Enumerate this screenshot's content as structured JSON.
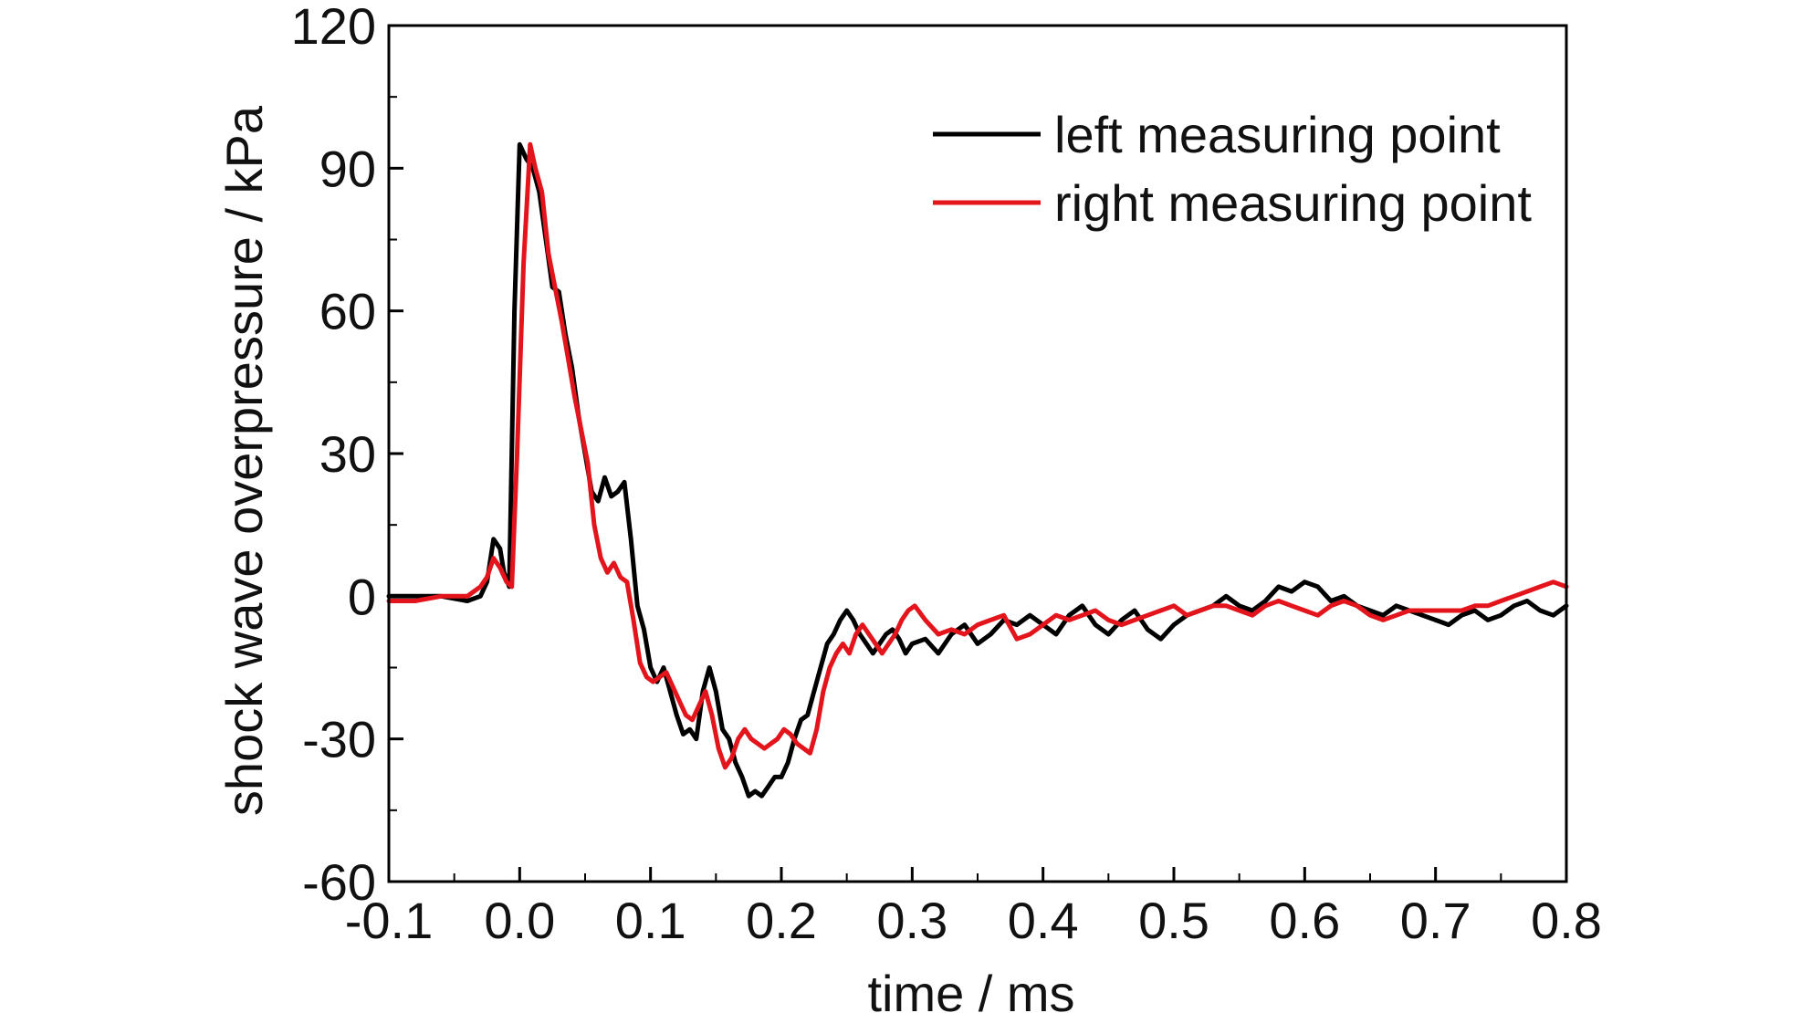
{
  "chart_data": {
    "type": "line",
    "xlabel": "time / ms",
    "ylabel": "shock wave overpressure / kPa",
    "xlim": [
      -0.1,
      0.8
    ],
    "ylim": [
      -60,
      120
    ],
    "xticks": [
      -0.1,
      0.0,
      0.1,
      0.2,
      0.3,
      0.4,
      0.5,
      0.6,
      0.7,
      0.8
    ],
    "xtick_labels": [
      "-0.1",
      "0.0",
      "0.1",
      "0.2",
      "0.3",
      "0.4",
      "0.5",
      "0.6",
      "0.7",
      "0.8"
    ],
    "yticks": [
      -60,
      -30,
      0,
      30,
      60,
      90,
      120
    ],
    "ytick_labels": [
      "-60",
      "-30",
      "0",
      "30",
      "60",
      "90",
      "120"
    ],
    "grid": false,
    "legend_position": "top-right",
    "series": [
      {
        "name": "left measuring point",
        "color": "#000000",
        "x": [
          -0.1,
          -0.08,
          -0.06,
          -0.04,
          -0.03,
          -0.025,
          -0.02,
          -0.015,
          -0.012,
          -0.008,
          -0.004,
          0.0,
          0.005,
          0.01,
          0.015,
          0.02,
          0.025,
          0.03,
          0.035,
          0.04,
          0.045,
          0.05,
          0.055,
          0.06,
          0.065,
          0.07,
          0.075,
          0.08,
          0.085,
          0.09,
          0.095,
          0.1,
          0.105,
          0.11,
          0.115,
          0.12,
          0.125,
          0.13,
          0.135,
          0.14,
          0.145,
          0.15,
          0.155,
          0.16,
          0.165,
          0.17,
          0.175,
          0.18,
          0.185,
          0.19,
          0.195,
          0.2,
          0.205,
          0.21,
          0.215,
          0.22,
          0.225,
          0.23,
          0.235,
          0.24,
          0.245,
          0.25,
          0.255,
          0.26,
          0.265,
          0.27,
          0.275,
          0.28,
          0.285,
          0.29,
          0.295,
          0.3,
          0.31,
          0.32,
          0.33,
          0.34,
          0.35,
          0.36,
          0.37,
          0.38,
          0.39,
          0.4,
          0.41,
          0.42,
          0.43,
          0.44,
          0.45,
          0.46,
          0.47,
          0.48,
          0.49,
          0.5,
          0.51,
          0.52,
          0.53,
          0.54,
          0.55,
          0.56,
          0.57,
          0.58,
          0.59,
          0.6,
          0.61,
          0.62,
          0.63,
          0.64,
          0.65,
          0.66,
          0.67,
          0.68,
          0.69,
          0.7,
          0.71,
          0.72,
          0.73,
          0.74,
          0.75,
          0.76,
          0.77,
          0.78,
          0.79,
          0.8
        ],
        "values": [
          0,
          0,
          0,
          -1,
          0,
          3,
          12,
          10,
          5,
          2,
          60,
          95,
          92,
          90,
          85,
          75,
          65,
          64,
          55,
          48,
          38,
          30,
          22,
          20,
          25,
          21,
          22,
          24,
          12,
          -2,
          -7,
          -15,
          -18,
          -15,
          -20,
          -25,
          -29,
          -28,
          -30,
          -20,
          -15,
          -20,
          -28,
          -30,
          -35,
          -38,
          -42,
          -41,
          -42,
          -40,
          -38,
          -38,
          -35,
          -30,
          -26,
          -25,
          -20,
          -15,
          -10,
          -8,
          -5,
          -3,
          -5,
          -8,
          -10,
          -12,
          -10,
          -8,
          -7,
          -9,
          -12,
          -10,
          -9,
          -12,
          -8,
          -6,
          -10,
          -8,
          -5,
          -6,
          -4,
          -6,
          -8,
          -4,
          -2,
          -6,
          -8,
          -5,
          -3,
          -7,
          -9,
          -6,
          -4,
          -3,
          -2,
          0,
          -2,
          -3,
          -1,
          2,
          1,
          3,
          2,
          -1,
          0,
          -2,
          -3,
          -4,
          -2,
          -3,
          -4,
          -5,
          -6,
          -4,
          -3,
          -5,
          -4,
          -2,
          -1,
          -3,
          -4,
          -2
        ]
      },
      {
        "name": "right measuring point",
        "color": "#e3141b",
        "x": [
          -0.1,
          -0.08,
          -0.06,
          -0.04,
          -0.03,
          -0.025,
          -0.02,
          -0.015,
          -0.01,
          -0.006,
          -0.002,
          0.003,
          0.008,
          0.012,
          0.017,
          0.022,
          0.027,
          0.032,
          0.037,
          0.042,
          0.047,
          0.052,
          0.057,
          0.062,
          0.067,
          0.072,
          0.077,
          0.082,
          0.087,
          0.092,
          0.097,
          0.102,
          0.107,
          0.112,
          0.117,
          0.122,
          0.127,
          0.132,
          0.137,
          0.142,
          0.147,
          0.152,
          0.157,
          0.162,
          0.167,
          0.172,
          0.177,
          0.182,
          0.187,
          0.192,
          0.197,
          0.202,
          0.207,
          0.212,
          0.217,
          0.222,
          0.227,
          0.232,
          0.237,
          0.242,
          0.247,
          0.252,
          0.257,
          0.262,
          0.267,
          0.272,
          0.277,
          0.282,
          0.287,
          0.292,
          0.297,
          0.302,
          0.31,
          0.32,
          0.33,
          0.34,
          0.35,
          0.36,
          0.37,
          0.38,
          0.39,
          0.4,
          0.41,
          0.42,
          0.43,
          0.44,
          0.45,
          0.46,
          0.47,
          0.48,
          0.49,
          0.5,
          0.51,
          0.52,
          0.53,
          0.54,
          0.55,
          0.56,
          0.57,
          0.58,
          0.59,
          0.6,
          0.61,
          0.62,
          0.63,
          0.64,
          0.65,
          0.66,
          0.67,
          0.68,
          0.69,
          0.7,
          0.71,
          0.72,
          0.73,
          0.74,
          0.75,
          0.76,
          0.77,
          0.78,
          0.79,
          0.8
        ],
        "values": [
          -1,
          -1,
          0,
          0,
          2,
          4,
          8,
          6,
          3,
          2,
          30,
          70,
          95,
          90,
          85,
          72,
          65,
          58,
          50,
          42,
          35,
          28,
          15,
          8,
          5,
          7,
          4,
          3,
          -5,
          -14,
          -17,
          -18,
          -17,
          -16,
          -19,
          -22,
          -25,
          -26,
          -23,
          -20,
          -25,
          -32,
          -36,
          -34,
          -30,
          -28,
          -30,
          -31,
          -32,
          -31,
          -30,
          -28,
          -29,
          -31,
          -32,
          -33,
          -28,
          -20,
          -15,
          -12,
          -10,
          -12,
          -8,
          -6,
          -8,
          -10,
          -12,
          -10,
          -8,
          -5,
          -3,
          -2,
          -5,
          -8,
          -7,
          -8,
          -6,
          -5,
          -4,
          -9,
          -8,
          -6,
          -4,
          -5,
          -4,
          -3,
          -5,
          -6,
          -5,
          -4,
          -3,
          -2,
          -4,
          -3,
          -2,
          -2,
          -3,
          -4,
          -2,
          -1,
          -2,
          -3,
          -4,
          -2,
          -1,
          -2,
          -4,
          -5,
          -4,
          -3,
          -3,
          -3,
          -3,
          -3,
          -2,
          -2,
          -1,
          0,
          1,
          2,
          3,
          2
        ]
      }
    ]
  }
}
